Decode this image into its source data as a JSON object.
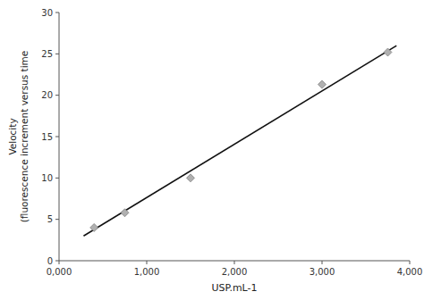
{
  "chart_data": {
    "type": "scatter",
    "xlabel": "USP.mL-1",
    "ylabel": "Velocity\n(fluorescence increment versus time",
    "series": [
      {
        "type": "scatter",
        "marker": "diamond",
        "color": "#b0b0b0",
        "x": [
          400,
          750,
          1500,
          3000,
          3750
        ],
        "values": [
          4.0,
          5.8,
          10.0,
          21.3,
          25.2
        ]
      },
      {
        "type": "line",
        "line_style": "solid",
        "color": "#111111",
        "x": [
          280,
          3850
        ],
        "values": [
          3.0,
          26.0
        ]
      }
    ],
    "xlim": [
      0,
      4000
    ],
    "ylim": [
      0,
      30
    ],
    "xticks": [
      {
        "value": 0,
        "label": "0,000"
      },
      {
        "value": 1000,
        "label": "1,000"
      },
      {
        "value": 2000,
        "label": "2,000"
      },
      {
        "value": 3000,
        "label": "3,000"
      },
      {
        "value": 4000,
        "label": "4,000"
      }
    ],
    "yticks": [
      0,
      5,
      10,
      15,
      20,
      25,
      30
    ],
    "grid": false
  }
}
